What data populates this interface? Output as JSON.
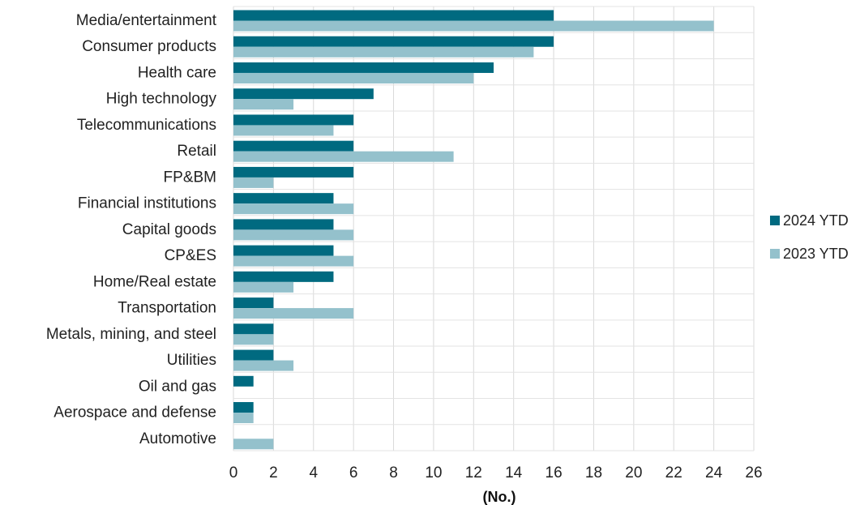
{
  "chart_data": {
    "type": "bar",
    "orientation": "horizontal",
    "title": "",
    "xlabel": "(No.)",
    "ylabel": "",
    "xlim": [
      0,
      26
    ],
    "x_ticks": [
      0,
      2,
      4,
      6,
      8,
      10,
      12,
      14,
      16,
      18,
      20,
      22,
      24,
      26
    ],
    "grid": true,
    "legend_position": "right",
    "categories": [
      "Media/entertainment",
      "Consumer products",
      "Health care",
      "High technology",
      "Telecommunications",
      "Retail",
      "FP&BM",
      "Financial institutions",
      "Capital goods",
      "CP&ES",
      "Home/Real estate",
      "Transportation",
      "Metals, mining, and steel",
      "Utilities",
      "Oil and gas",
      "Aerospace and defense",
      "Automotive"
    ],
    "series": [
      {
        "name": "2024 YTD",
        "color": "#006a80",
        "values": [
          16,
          16,
          13,
          7,
          6,
          6,
          6,
          5,
          5,
          5,
          5,
          2,
          2,
          2,
          1,
          1,
          0
        ]
      },
      {
        "name": "2023 YTD",
        "color": "#94c1cc",
        "values": [
          24,
          15,
          12,
          3,
          5,
          11,
          2,
          6,
          6,
          6,
          3,
          6,
          2,
          3,
          0,
          1,
          2
        ]
      }
    ]
  }
}
